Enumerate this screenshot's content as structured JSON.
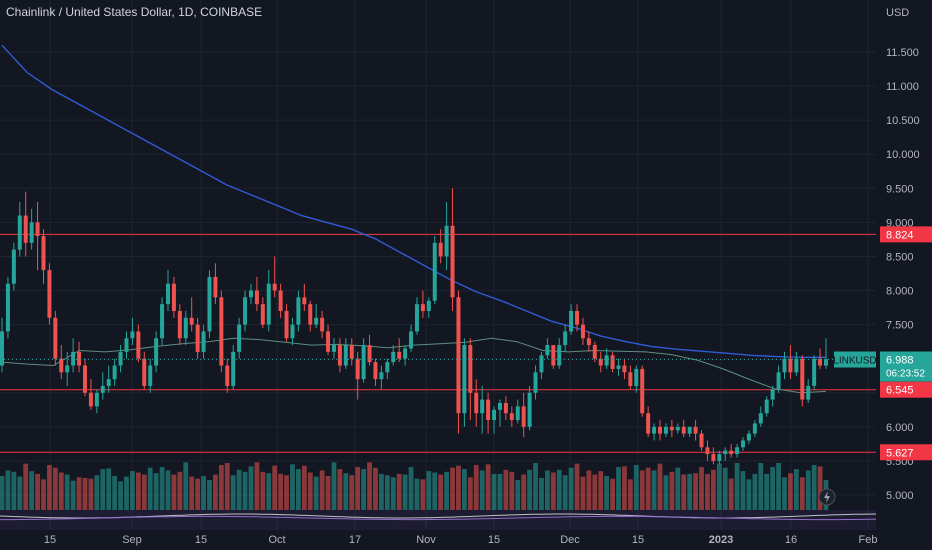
{
  "header": {
    "title": "Chainlink / United States Dollar, 1D, COINBASE"
  },
  "colors": {
    "background": "#131722",
    "up": "#26a69a",
    "down": "#ef5350",
    "ma_long": "#2f5bd6",
    "ma_short": "#5f8f7f",
    "level_line": "#f23645",
    "last_price_bg": "#26a69a"
  },
  "chart_data": {
    "type": "candlestick",
    "symbol": "LINKUSD",
    "currency_label": "USD",
    "y_ticks": [
      "11.500",
      "11.000",
      "10.500",
      "10.000",
      "9.500",
      "9.000",
      "8.500",
      "8.000",
      "7.500",
      "7.000",
      "6.500",
      "6.000",
      "5.500",
      "5.000"
    ],
    "x_ticks": [
      "15",
      "Sep",
      "15",
      "Oct",
      "17",
      "Nov",
      "15",
      "Dec",
      "15",
      "2023",
      "16",
      "Feb"
    ],
    "ylim": [
      4.85,
      11.9
    ],
    "horizontal_levels": [
      {
        "value": 8.824,
        "label": "8.824"
      },
      {
        "value": 6.545,
        "label": "6.545"
      },
      {
        "value": 5.627,
        "label": "5.627"
      }
    ],
    "last_price": {
      "symbol": "LINKUSD",
      "value": 6.988,
      "label": "6.988",
      "countdown": "06:23:52"
    },
    "moving_average_long": [
      11.6,
      11.2,
      10.95,
      10.75,
      10.55,
      10.35,
      10.15,
      9.95,
      9.75,
      9.55,
      9.4,
      9.25,
      9.1,
      9.0,
      8.9,
      8.75,
      8.55,
      8.35,
      8.15,
      7.98,
      7.85,
      7.7,
      7.55,
      7.45,
      7.33,
      7.25,
      7.18,
      7.14,
      7.11,
      7.08,
      7.05,
      7.03,
      7.02,
      7.02
    ],
    "moving_average_short": [
      6.95,
      6.92,
      6.9,
      7.12,
      7.1,
      7.13,
      7.18,
      7.22,
      7.25,
      7.3,
      7.28,
      7.24,
      7.2,
      7.21,
      7.19,
      7.16,
      7.2,
      7.22,
      7.24,
      7.3,
      7.25,
      7.12,
      7.1,
      7.12,
      7.11,
      7.1,
      7.06,
      6.98,
      6.85,
      6.7,
      6.56,
      6.5,
      6.52
    ],
    "candles": [
      [
        6.9,
        7.6,
        7.4,
        6.8
      ],
      [
        7.4,
        8.2,
        8.1,
        7.3
      ],
      [
        8.1,
        8.7,
        8.6,
        8.0
      ],
      [
        8.6,
        9.3,
        9.1,
        8.5
      ],
      [
        9.1,
        9.45,
        8.7,
        8.5
      ],
      [
        8.7,
        9.2,
        9.0,
        8.6
      ],
      [
        9.0,
        9.3,
        8.8,
        8.3
      ],
      [
        8.8,
        8.9,
        8.3,
        8.1
      ],
      [
        8.3,
        8.4,
        7.6,
        7.5
      ],
      [
        7.6,
        7.7,
        7.0,
        6.9
      ],
      [
        7.0,
        7.2,
        6.8,
        6.7
      ],
      [
        6.8,
        7.1,
        6.9,
        6.6
      ],
      [
        6.9,
        7.3,
        7.1,
        6.8
      ],
      [
        7.1,
        7.25,
        6.9,
        6.8
      ],
      [
        6.9,
        7.0,
        6.5,
        6.45
      ],
      [
        6.5,
        6.7,
        6.3,
        6.25
      ],
      [
        6.3,
        6.55,
        6.5,
        6.2
      ],
      [
        6.5,
        6.8,
        6.6,
        6.4
      ],
      [
        6.6,
        6.9,
        6.7,
        6.5
      ],
      [
        6.7,
        7.0,
        6.9,
        6.6
      ],
      [
        6.9,
        7.2,
        7.1,
        6.8
      ],
      [
        7.1,
        7.4,
        7.3,
        7.0
      ],
      [
        7.3,
        7.6,
        7.4,
        7.2
      ],
      [
        7.4,
        7.5,
        7.0,
        6.95
      ],
      [
        7.0,
        7.1,
        6.6,
        6.55
      ],
      [
        6.6,
        7.0,
        6.9,
        6.5
      ],
      [
        6.9,
        7.4,
        7.3,
        6.8
      ],
      [
        7.3,
        7.9,
        7.8,
        7.2
      ],
      [
        7.8,
        8.3,
        8.1,
        7.7
      ],
      [
        8.1,
        8.2,
        7.7,
        7.6
      ],
      [
        7.7,
        7.8,
        7.3,
        7.2
      ],
      [
        7.3,
        7.7,
        7.6,
        7.2
      ],
      [
        7.6,
        7.9,
        7.5,
        7.4
      ],
      [
        7.5,
        7.6,
        7.1,
        7.0
      ],
      [
        7.1,
        7.5,
        7.4,
        7.0
      ],
      [
        7.4,
        8.3,
        8.2,
        7.3
      ],
      [
        8.2,
        8.4,
        7.9,
        7.8
      ],
      [
        7.9,
        8.0,
        6.9,
        6.8
      ],
      [
        6.9,
        7.0,
        6.6,
        6.5
      ],
      [
        6.6,
        7.2,
        7.1,
        6.55
      ],
      [
        7.1,
        7.6,
        7.5,
        7.0
      ],
      [
        7.5,
        8.0,
        7.9,
        7.4
      ],
      [
        7.9,
        8.1,
        8.0,
        7.8
      ],
      [
        8.0,
        8.2,
        7.8,
        7.7
      ],
      [
        7.8,
        7.9,
        7.5,
        7.45
      ],
      [
        7.5,
        8.3,
        8.1,
        7.4
      ],
      [
        8.1,
        8.5,
        8.0,
        7.9
      ],
      [
        8.0,
        8.1,
        7.7,
        7.6
      ],
      [
        7.7,
        7.8,
        7.3,
        7.25
      ],
      [
        7.3,
        7.6,
        7.5,
        7.2
      ],
      [
        7.5,
        8.0,
        7.9,
        7.4
      ],
      [
        7.9,
        8.1,
        7.8,
        7.7
      ],
      [
        7.8,
        7.85,
        7.5,
        7.4
      ],
      [
        7.5,
        7.8,
        7.6,
        7.45
      ],
      [
        7.6,
        7.7,
        7.4,
        7.3
      ],
      [
        7.4,
        7.5,
        7.1,
        7.05
      ],
      [
        7.1,
        7.3,
        7.2,
        7.0
      ],
      [
        7.2,
        7.3,
        6.9,
        6.8
      ],
      [
        6.9,
        7.3,
        7.2,
        6.85
      ],
      [
        7.2,
        7.3,
        7.0,
        6.9
      ],
      [
        7.0,
        7.1,
        6.7,
        6.4
      ],
      [
        6.7,
        7.3,
        7.2,
        6.65
      ],
      [
        7.2,
        7.35,
        6.95,
        6.9
      ],
      [
        6.95,
        7.0,
        6.7,
        6.6
      ],
      [
        6.7,
        6.9,
        6.8,
        6.55
      ],
      [
        6.8,
        7.0,
        6.95,
        6.7
      ],
      [
        6.95,
        7.2,
        7.1,
        6.9
      ],
      [
        7.1,
        7.3,
        7.0,
        6.95
      ],
      [
        7.0,
        7.2,
        7.15,
        6.9
      ],
      [
        7.15,
        7.5,
        7.4,
        7.1
      ],
      [
        7.4,
        7.9,
        7.8,
        7.35
      ],
      [
        7.8,
        8.0,
        7.7,
        7.6
      ],
      [
        7.7,
        7.9,
        7.85,
        7.6
      ],
      [
        7.85,
        8.8,
        8.7,
        7.8
      ],
      [
        8.7,
        8.9,
        8.5,
        8.4
      ],
      [
        8.5,
        9.3,
        8.95,
        8.3
      ],
      [
        8.95,
        9.5,
        7.9,
        7.7
      ],
      [
        7.9,
        8.0,
        6.2,
        5.9
      ],
      [
        6.2,
        7.3,
        7.2,
        6.0
      ],
      [
        7.2,
        7.3,
        6.5,
        6.1
      ],
      [
        6.5,
        6.7,
        6.2,
        6.0
      ],
      [
        6.2,
        6.6,
        6.4,
        5.9
      ],
      [
        6.4,
        6.5,
        6.1,
        5.9
      ],
      [
        6.1,
        6.3,
        6.25,
        5.9
      ],
      [
        6.25,
        6.4,
        6.35,
        6.0
      ],
      [
        6.35,
        6.45,
        6.2,
        6.1
      ],
      [
        6.2,
        6.3,
        6.1,
        6.0
      ],
      [
        6.1,
        6.4,
        6.3,
        6.05
      ],
      [
        6.3,
        6.5,
        6.0,
        5.85
      ],
      [
        6.0,
        6.6,
        6.5,
        5.95
      ],
      [
        6.5,
        6.9,
        6.8,
        6.4
      ],
      [
        6.8,
        7.1,
        7.05,
        6.7
      ],
      [
        7.05,
        7.3,
        7.2,
        7.0
      ],
      [
        7.2,
        7.1,
        6.9,
        6.85
      ],
      [
        6.9,
        7.3,
        7.2,
        6.85
      ],
      [
        7.2,
        7.5,
        7.4,
        7.1
      ],
      [
        7.4,
        7.8,
        7.7,
        7.35
      ],
      [
        7.7,
        7.8,
        7.5,
        7.4
      ],
      [
        7.5,
        7.6,
        7.3,
        7.2
      ],
      [
        7.3,
        7.4,
        7.2,
        7.1
      ],
      [
        7.2,
        7.25,
        7.0,
        6.95
      ],
      [
        7.0,
        7.1,
        6.9,
        6.8
      ],
      [
        6.9,
        7.15,
        7.05,
        6.85
      ],
      [
        7.05,
        7.1,
        6.85,
        6.8
      ],
      [
        6.85,
        7.0,
        6.9,
        6.75
      ],
      [
        6.9,
        7.0,
        6.8,
        6.7
      ],
      [
        6.8,
        6.9,
        6.6,
        6.55
      ],
      [
        6.6,
        6.9,
        6.85,
        6.5
      ],
      [
        6.85,
        6.9,
        6.2,
        6.15
      ],
      [
        6.2,
        6.3,
        5.9,
        5.85
      ],
      [
        5.9,
        6.05,
        6.0,
        5.8
      ],
      [
        6.0,
        6.1,
        5.9,
        5.8
      ],
      [
        5.9,
        6.05,
        6.0,
        5.85
      ],
      [
        6.0,
        6.1,
        5.95,
        5.85
      ],
      [
        5.95,
        6.05,
        6.0,
        5.9
      ],
      [
        6.0,
        6.1,
        5.9,
        5.85
      ],
      [
        5.9,
        6.0,
        6.0,
        5.85
      ],
      [
        6.0,
        6.1,
        5.9,
        5.8
      ],
      [
        5.9,
        5.95,
        5.7,
        5.65
      ],
      [
        5.7,
        5.8,
        5.6,
        5.5
      ],
      [
        5.6,
        5.7,
        5.5,
        5.45
      ],
      [
        5.5,
        5.65,
        5.6,
        5.45
      ],
      [
        5.6,
        5.7,
        5.65,
        5.5
      ],
      [
        5.65,
        5.75,
        5.6,
        5.55
      ],
      [
        5.6,
        5.75,
        5.7,
        5.55
      ],
      [
        5.7,
        5.85,
        5.8,
        5.65
      ],
      [
        5.8,
        5.95,
        5.9,
        5.75
      ],
      [
        5.9,
        6.1,
        6.05,
        5.85
      ],
      [
        6.05,
        6.3,
        6.2,
        6.0
      ],
      [
        6.2,
        6.45,
        6.4,
        6.15
      ],
      [
        6.4,
        6.6,
        6.55,
        6.3
      ],
      [
        6.55,
        6.9,
        6.8,
        6.5
      ],
      [
        6.8,
        7.1,
        7.0,
        6.7
      ],
      [
        7.0,
        7.2,
        6.8,
        6.7
      ],
      [
        6.8,
        7.1,
        7.0,
        6.75
      ],
      [
        7.0,
        7.05,
        6.4,
        6.3
      ],
      [
        6.4,
        6.7,
        6.6,
        6.35
      ],
      [
        6.6,
        7.05,
        7.0,
        6.55
      ],
      [
        7.0,
        7.15,
        6.9,
        6.85
      ],
      [
        6.9,
        7.3,
        6.99,
        6.85
      ]
    ],
    "volumes": [
      5.28,
      5.36,
      5.34,
      5.27,
      5.46,
      5.35,
      5.31,
      5.23,
      5.44,
      5.4,
      5.33,
      5.3,
      5.21,
      5.26,
      5.25,
      5.24,
      5.29,
      5.38,
      5.39,
      5.28,
      5.2,
      5.27,
      5.35,
      5.33,
      5.3,
      5.4,
      5.32,
      5.41,
      5.36,
      5.3,
      5.34,
      5.48,
      5.27,
      5.24,
      5.28,
      5.22,
      5.3,
      5.44,
      5.47,
      5.29,
      5.37,
      5.34,
      5.42,
      5.48,
      5.34,
      5.32,
      5.43,
      5.31,
      5.29,
      5.45,
      5.38,
      5.43,
      5.33,
      5.27,
      5.36,
      5.28,
      5.48,
      5.38,
      5.32,
      5.29,
      5.41,
      5.38,
      5.48,
      5.4,
      5.31,
      5.29,
      5.26,
      5.31,
      5.3,
      5.41,
      5.24,
      5.23,
      5.35,
      5.33,
      5.3,
      5.34,
      5.4,
      5.43,
      5.38,
      5.26,
      5.44,
      5.36,
      5.45,
      5.31,
      5.31,
      5.37,
      5.34,
      5.22,
      5.3,
      5.37,
      5.47,
      5.25,
      5.36,
      5.33,
      5.37,
      5.29,
      5.4,
      5.46,
      5.27,
      5.36,
      5.3,
      5.35,
      5.28,
      5.24,
      5.41,
      5.42,
      5.23,
      5.44,
      5.36,
      5.4,
      5.36,
      5.46,
      5.29,
      5.34,
      5.4,
      5.3,
      5.31,
      5.32,
      5.41,
      5.31,
      5.37,
      5.46,
      5.4,
      5.24,
      5.47,
      5.35,
      5.23,
      5.31,
      5.47,
      5.31,
      5.41,
      5.47,
      5.26,
      5.32,
      5.38,
      5.26,
      5.36,
      5.44,
      5.42,
      5.22
    ]
  }
}
